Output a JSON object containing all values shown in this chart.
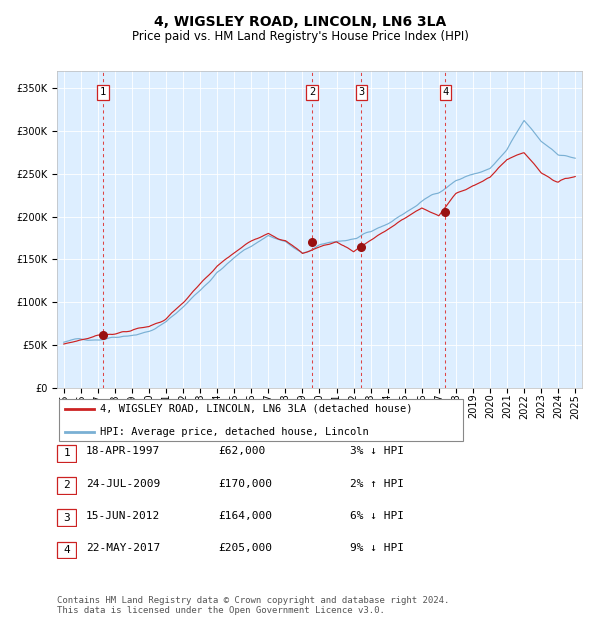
{
  "title": "4, WIGSLEY ROAD, LINCOLN, LN6 3LA",
  "subtitle": "Price paid vs. HM Land Registry's House Price Index (HPI)",
  "background_color": "#ffffff",
  "plot_bg_color": "#ddeeff",
  "hpi_color": "#7ab0d4",
  "price_color": "#cc2222",
  "marker_color": "#991111",
  "dashed_line_color": "#dd4444",
  "ylim": [
    0,
    370000
  ],
  "yticks": [
    0,
    50000,
    100000,
    150000,
    200000,
    250000,
    300000,
    350000
  ],
  "ytick_labels": [
    "£0",
    "£50K",
    "£100K",
    "£150K",
    "£200K",
    "£250K",
    "£300K",
    "£350K"
  ],
  "x_start_year": 1995,
  "x_end_year": 2025,
  "sale_dates": [
    "1997-04-18",
    "2009-07-24",
    "2012-06-15",
    "2017-05-22"
  ],
  "sale_prices": [
    62000,
    170000,
    164000,
    205000
  ],
  "sale_labels": [
    "1",
    "2",
    "3",
    "4"
  ],
  "legend_label_red": "4, WIGSLEY ROAD, LINCOLN, LN6 3LA (detached house)",
  "legend_label_blue": "HPI: Average price, detached house, Lincoln",
  "table_rows": [
    [
      "1",
      "18-APR-1997",
      "£62,000",
      "3% ↓ HPI"
    ],
    [
      "2",
      "24-JUL-2009",
      "£170,000",
      "2% ↑ HPI"
    ],
    [
      "3",
      "15-JUN-2012",
      "£164,000",
      "6% ↓ HPI"
    ],
    [
      "4",
      "22-MAY-2017",
      "£205,000",
      "9% ↓ HPI"
    ]
  ],
  "footer_text": "Contains HM Land Registry data © Crown copyright and database right 2024.\nThis data is licensed under the Open Government Licence v3.0.",
  "title_fontsize": 10,
  "subtitle_fontsize": 8.5,
  "tick_fontsize": 7,
  "legend_fontsize": 7.5,
  "table_fontsize": 8,
  "footer_fontsize": 6.5,
  "hpi_key_years": [
    1995,
    1997,
    1998,
    2000,
    2001,
    2002,
    2003,
    2004,
    2005,
    2006,
    2007,
    2008,
    2009,
    2010,
    2011,
    2012,
    2013,
    2014,
    2015,
    2016,
    2017,
    2018,
    2019,
    2020,
    2021,
    2022,
    2023,
    2024,
    2025
  ],
  "hpi_key_vals": [
    53000,
    58000,
    63000,
    72000,
    82000,
    100000,
    120000,
    142000,
    158000,
    172000,
    185000,
    178000,
    162000,
    170000,
    175000,
    178000,
    182000,
    192000,
    205000,
    218000,
    230000,
    245000,
    252000,
    258000,
    278000,
    310000,
    285000,
    272000,
    268000
  ],
  "price_key_years": [
    1995,
    1997,
    1998,
    2000,
    2001,
    2002,
    2003,
    2004,
    2005,
    2006,
    2007,
    2008,
    2009,
    2010,
    2011,
    2012,
    2013,
    2014,
    2015,
    2016,
    2017,
    2018,
    2019,
    2020,
    2021,
    2022,
    2023,
    2024,
    2025
  ],
  "price_key_vals": [
    51000,
    62000,
    66000,
    74000,
    84000,
    102000,
    122000,
    142000,
    157000,
    170000,
    183000,
    176000,
    160000,
    168000,
    174000,
    164000,
    178000,
    190000,
    202000,
    215000,
    205000,
    230000,
    242000,
    250000,
    272000,
    280000,
    258000,
    248000,
    255000
  ]
}
